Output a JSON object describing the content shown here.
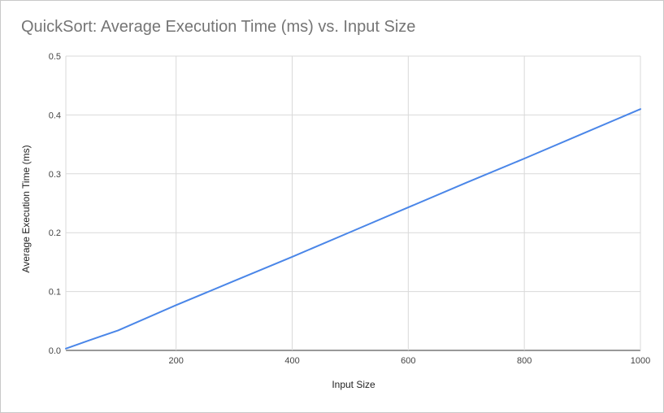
{
  "chart_data": {
    "type": "line",
    "title": "QuickSort: Average Execution Time (ms) vs. Input Size",
    "xlabel": "Input Size",
    "ylabel": "Average Execution Time (ms)",
    "xlim": [
      10,
      1000
    ],
    "ylim": [
      0,
      0.5
    ],
    "x_ticks": [
      "200",
      "400",
      "600",
      "800",
      "1000"
    ],
    "x_tick_values": [
      200,
      400,
      600,
      800,
      1000
    ],
    "y_ticks": [
      "0.0",
      "0.1",
      "0.2",
      "0.3",
      "0.4",
      "0.5"
    ],
    "y_tick_values": [
      0,
      0.1,
      0.2,
      0.3,
      0.4,
      0.5
    ],
    "grid": true,
    "legend": "none",
    "series": [
      {
        "color": "#4a86e8",
        "x": [
          10,
          50,
          100,
          200,
          300,
          400,
          500,
          600,
          700,
          800,
          900,
          1000
        ],
        "y": [
          0.003,
          0.017,
          0.034,
          0.077,
          0.118,
          0.159,
          0.201,
          0.243,
          0.285,
          0.326,
          0.368,
          0.41
        ]
      }
    ]
  }
}
